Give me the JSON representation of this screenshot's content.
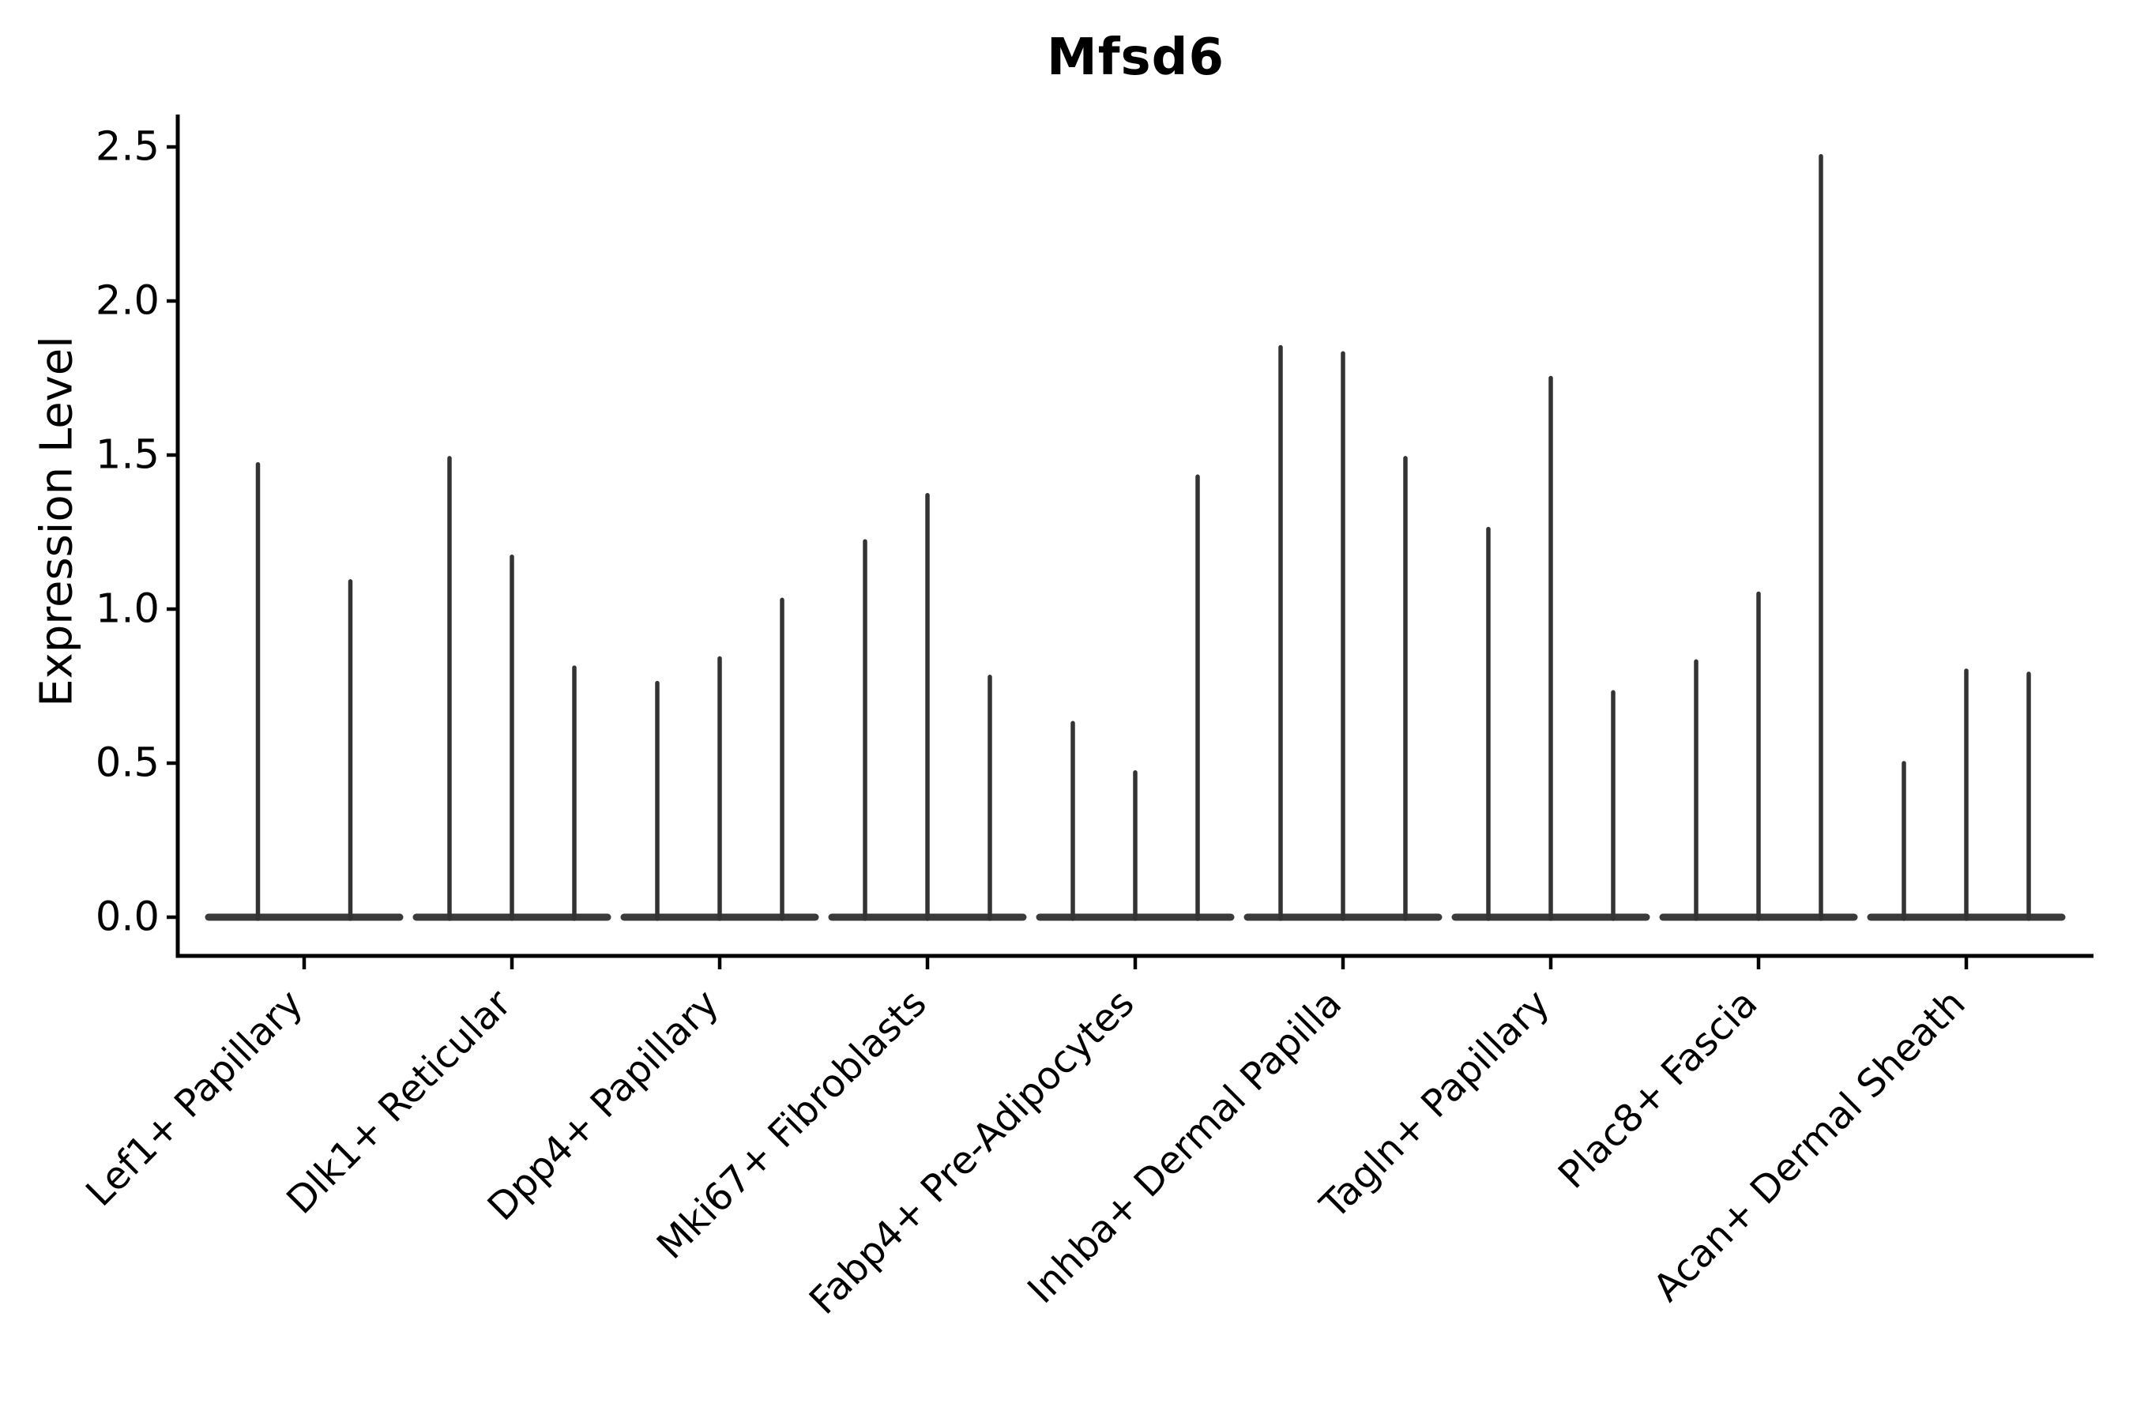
{
  "title": "Mfsd6",
  "chart_data": {
    "type": "violin",
    "title": "Mfsd6",
    "xlabel": "",
    "ylabel": "Expression Level",
    "ylim": [
      -0.13,
      2.6
    ],
    "yticks": [
      "0.0",
      "0.5",
      "1.0",
      "1.5",
      "2.0",
      "2.5"
    ],
    "grid": "off",
    "legend": "none",
    "baseline_value": 0.0,
    "description": "Violin plot of Mfsd6 expression; each category shows 2-3 extremely thin violins flattened at 0 with a narrow spike reaching the maximum expression value.",
    "categories": [
      "Lef1+ Papillary",
      "Dlk1+ Reticular",
      "Dpp4+ Papillary",
      "Mki67+ Fibroblasts",
      "Fabp4+ Pre-Adipocytes",
      "Inhba+ Dermal Papilla",
      "Tagln+ Papillary",
      "Plac8+ Fascia",
      "Acan+ Dermal Sheath"
    ],
    "groups": [
      {
        "label": "Lef1+ Papillary",
        "spike_maxima": [
          1.47,
          1.09
        ]
      },
      {
        "label": "Dlk1+ Reticular",
        "spike_maxima": [
          1.49,
          1.17,
          0.81
        ]
      },
      {
        "label": "Dpp4+ Papillary",
        "spike_maxima": [
          0.76,
          0.84,
          1.03
        ]
      },
      {
        "label": "Mki67+ Fibroblasts",
        "spike_maxima": [
          1.22,
          1.37,
          0.78
        ]
      },
      {
        "label": "Fabp4+ Pre-Adipocytes",
        "spike_maxima": [
          0.63,
          0.47,
          1.43
        ]
      },
      {
        "label": "Inhba+ Dermal Papilla",
        "spike_maxima": [
          1.85,
          1.83,
          1.49
        ]
      },
      {
        "label": "Tagln+ Papillary",
        "spike_maxima": [
          1.26,
          1.75,
          0.73
        ]
      },
      {
        "label": "Plac8+ Fascia",
        "spike_maxima": [
          0.83,
          1.05,
          2.47
        ]
      },
      {
        "label": "Acan+ Dermal Sheath",
        "spike_maxima": [
          0.5,
          0.8,
          0.79
        ]
      }
    ],
    "colors": {
      "violin_line": "#333333",
      "violin_baseline": "#3a3a3a",
      "axis": "#000000",
      "text": "#000000",
      "background": "#ffffff"
    }
  }
}
